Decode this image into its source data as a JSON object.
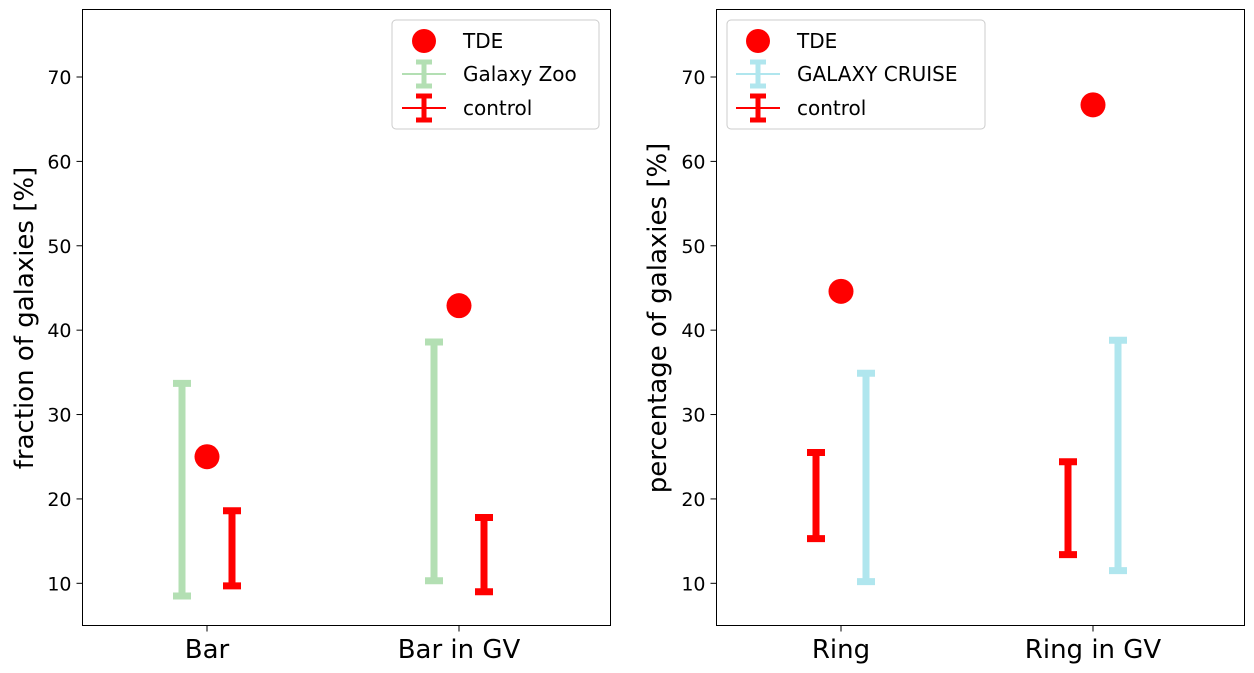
{
  "chart_data": [
    {
      "type": "errorbar",
      "ylabel": "fraction of galaxies [%]",
      "ylim": [
        5,
        78
      ],
      "yticks": [
        10,
        20,
        30,
        40,
        50,
        60,
        70
      ],
      "categories": [
        "Bar",
        "Bar in GV"
      ],
      "legend_location": "upper right",
      "series": [
        {
          "name": "TDE",
          "kind": "point",
          "color": "#ff0000",
          "values": [
            25.0,
            42.9
          ]
        },
        {
          "name": "Galaxy Zoo",
          "kind": "range",
          "color": "#b3dfb3",
          "offset": "left",
          "ranges": [
            [
              8.5,
              33.7
            ],
            [
              10.3,
              38.6
            ]
          ]
        },
        {
          "name": "control",
          "kind": "range",
          "color": "#ff0000",
          "offset": "right",
          "ranges": [
            [
              9.7,
              18.6
            ],
            [
              9.0,
              17.8
            ]
          ]
        }
      ]
    },
    {
      "type": "errorbar",
      "ylabel": "percentage of galaxies [%]",
      "ylim": [
        5,
        78
      ],
      "yticks": [
        10,
        20,
        30,
        40,
        50,
        60,
        70
      ],
      "categories": [
        "Ring",
        "Ring in GV"
      ],
      "legend_location": "upper left",
      "series": [
        {
          "name": "TDE",
          "kind": "point",
          "color": "#ff0000",
          "values": [
            44.6,
            66.7
          ]
        },
        {
          "name": "GALAXY CRUISE",
          "kind": "range",
          "color": "#b0e6ee",
          "offset": "right",
          "ranges": [
            [
              10.2,
              34.9
            ],
            [
              11.5,
              38.8
            ]
          ]
        },
        {
          "name": "control",
          "kind": "range",
          "color": "#ff0000",
          "offset": "left",
          "ranges": [
            [
              15.3,
              25.5
            ],
            [
              13.4,
              24.4
            ]
          ]
        }
      ]
    }
  ]
}
